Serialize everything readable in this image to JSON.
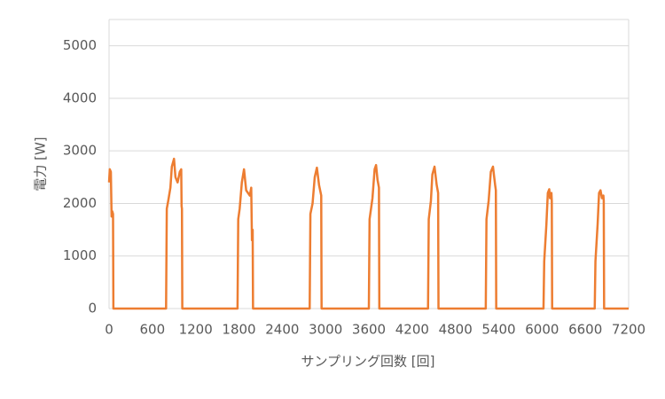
{
  "chart_data": {
    "type": "line",
    "xlabel": "サンプリング回数 [回]",
    "ylabel": "電力 [W]",
    "xlim": [
      0,
      7200
    ],
    "xticks": [
      0,
      600,
      1200,
      1800,
      2400,
      3000,
      3600,
      4200,
      4800,
      5400,
      6000,
      6600,
      7200
    ],
    "ylim": [
      0,
      5500
    ],
    "yticks": [
      0,
      1000,
      2000,
      3000,
      4000,
      5000
    ],
    "grid": true,
    "x": [
      0,
      10,
      25,
      35,
      45,
      55,
      60,
      790,
      800,
      820,
      850,
      870,
      900,
      920,
      950,
      980,
      1000,
      1005,
      1010,
      1015,
      1780,
      1790,
      1810,
      1840,
      1870,
      1900,
      1950,
      1970,
      1980,
      1990,
      1995,
      2780,
      2790,
      2820,
      2850,
      2880,
      2910,
      2940,
      2945,
      3600,
      3610,
      3650,
      3680,
      3700,
      3720,
      3740,
      3745,
      4420,
      4430,
      4460,
      4480,
      4510,
      4540,
      4560,
      4565,
      5220,
      5230,
      5260,
      5290,
      5320,
      5350,
      5360,
      5365,
      6020,
      6030,
      6060,
      6080,
      6100,
      6110,
      6130,
      6135,
      6140,
      6730,
      6740,
      6770,
      6790,
      6810,
      6830,
      6850,
      6855,
      6860,
      7200
    ],
    "series": [
      {
        "name": "電力",
        "color": "#ed7d31",
        "values": [
          2400,
          2650,
          2600,
          1750,
          1850,
          1800,
          0,
          0,
          1900,
          2050,
          2300,
          2700,
          2850,
          2500,
          2400,
          2600,
          2650,
          1950,
          1900,
          0,
          0,
          1700,
          1900,
          2400,
          2650,
          2250,
          2150,
          2300,
          1300,
          1500,
          0,
          0,
          1800,
          2000,
          2500,
          2680,
          2350,
          2150,
          0,
          0,
          1700,
          2100,
          2650,
          2730,
          2450,
          2300,
          0,
          0,
          1700,
          2050,
          2550,
          2700,
          2350,
          2200,
          0,
          0,
          1700,
          2050,
          2600,
          2700,
          2350,
          2250,
          0,
          0,
          900,
          1600,
          2200,
          2270,
          2100,
          2200,
          2050,
          0,
          0,
          900,
          1600,
          2200,
          2250,
          2100,
          2150,
          2050,
          0,
          0
        ]
      }
    ]
  }
}
